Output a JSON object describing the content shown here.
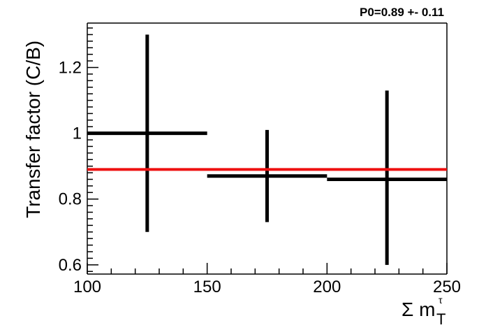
{
  "chart_data": {
    "type": "scatter",
    "fit_label": "P0=0.89 +- 0.11",
    "fit_value": 0.89,
    "xlabel_symbol": "Σ m",
    "xlabel_sub": "T",
    "xlabel_sup": "τ",
    "ylabel": "Transfer factor (C/B)",
    "xlim": [
      100,
      250
    ],
    "ylim": [
      0.572,
      1.335
    ],
    "xticks": [
      100,
      150,
      200,
      250
    ],
    "xtick_labels": [
      "100",
      "150",
      "200",
      "250"
    ],
    "yticks": [
      0.6,
      0.8,
      1.0,
      1.2
    ],
    "ytick_labels": [
      "0.6",
      "0.8",
      "1",
      "1.2"
    ],
    "points": [
      {
        "x": 125,
        "y": 1.0,
        "x_low": 100,
        "x_high": 150,
        "y_low": 0.7,
        "y_high": 1.3
      },
      {
        "x": 175,
        "y": 0.87,
        "x_low": 150,
        "x_high": 200,
        "y_low": 0.73,
        "y_high": 1.01
      },
      {
        "x": 225,
        "y": 0.86,
        "x_low": 200,
        "x_high": 250,
        "y_low": 0.6,
        "y_high": 1.13
      }
    ],
    "colors": {
      "data": "#000000",
      "fit": "#ee1111"
    },
    "grid": false,
    "legend": "none"
  }
}
